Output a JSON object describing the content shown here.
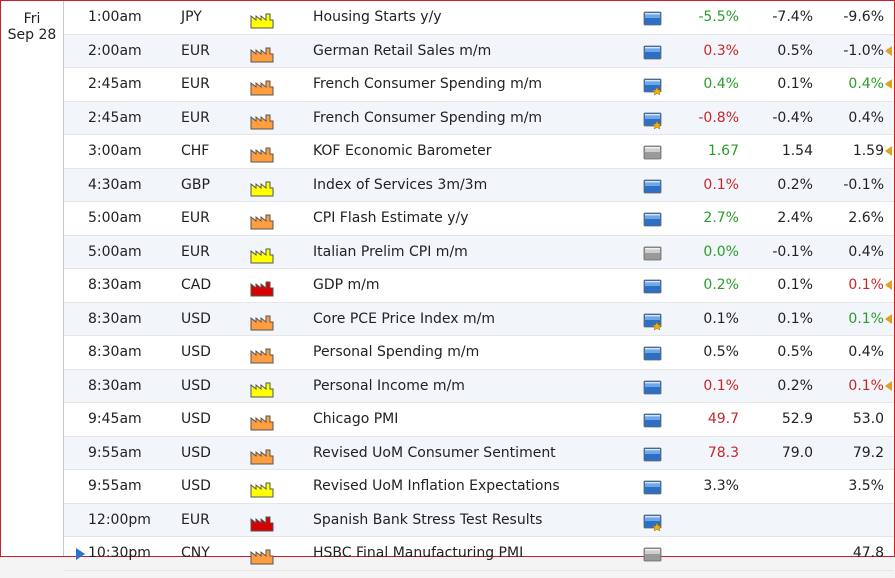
{
  "day": {
    "weekday": "Fri",
    "date": "Sep 28"
  },
  "colors": {
    "high": "#d60000",
    "medium": "#ff9d3f",
    "low": "#ffff00",
    "up": "#2a9d2a",
    "down": "#c62828"
  },
  "rows": [
    {
      "time": "1:00am",
      "currency": "JPY",
      "impact": "low",
      "event": "Housing Starts y/y",
      "detail": "blue",
      "actual": "-5.5%",
      "actual_color": "green",
      "forecast": "-7.4%",
      "previous": "-9.6%",
      "prev_color": "dark",
      "revised": false
    },
    {
      "time": "2:00am",
      "currency": "EUR",
      "impact": "medium",
      "event": "German Retail Sales m/m",
      "detail": "blue",
      "actual": "0.3%",
      "actual_color": "red",
      "forecast": "0.5%",
      "previous": "-1.0%",
      "prev_color": "dark",
      "revised": true
    },
    {
      "time": "2:45am",
      "currency": "EUR",
      "impact": "medium",
      "event": "French Consumer Spending m/m",
      "detail": "blue-star",
      "actual": "0.4%",
      "actual_color": "green",
      "forecast": "0.1%",
      "previous": "0.4%",
      "prev_color": "green",
      "revised": true
    },
    {
      "time": "2:45am",
      "currency": "EUR",
      "impact": "medium",
      "event": "French Consumer Spending m/m",
      "detail": "blue-star",
      "actual": "-0.8%",
      "actual_color": "red",
      "forecast": "-0.4%",
      "previous": "0.4%",
      "prev_color": "dark",
      "revised": false
    },
    {
      "time": "3:00am",
      "currency": "CHF",
      "impact": "medium",
      "event": "KOF Economic Barometer",
      "detail": "grey",
      "actual": "1.67",
      "actual_color": "green",
      "forecast": "1.54",
      "previous": "1.59",
      "prev_color": "dark",
      "revised": true
    },
    {
      "time": "4:30am",
      "currency": "GBP",
      "impact": "low",
      "event": "Index of Services 3m/3m",
      "detail": "blue",
      "actual": "0.1%",
      "actual_color": "red",
      "forecast": "0.2%",
      "previous": "-0.1%",
      "prev_color": "dark",
      "revised": false
    },
    {
      "time": "5:00am",
      "currency": "EUR",
      "impact": "medium",
      "event": "CPI Flash Estimate y/y",
      "detail": "blue",
      "actual": "2.7%",
      "actual_color": "green",
      "forecast": "2.4%",
      "previous": "2.6%",
      "prev_color": "dark",
      "revised": false
    },
    {
      "time": "5:00am",
      "currency": "EUR",
      "impact": "low",
      "event": "Italian Prelim CPI m/m",
      "detail": "grey",
      "actual": "0.0%",
      "actual_color": "green",
      "forecast": "-0.1%",
      "previous": "0.4%",
      "prev_color": "dark",
      "revised": false
    },
    {
      "time": "8:30am",
      "currency": "CAD",
      "impact": "high",
      "event": "GDP m/m",
      "detail": "blue",
      "actual": "0.2%",
      "actual_color": "green",
      "forecast": "0.1%",
      "previous": "0.1%",
      "prev_color": "red",
      "revised": true
    },
    {
      "time": "8:30am",
      "currency": "USD",
      "impact": "medium",
      "event": "Core PCE Price Index m/m",
      "detail": "blue-star",
      "actual": "0.1%",
      "actual_color": "dark",
      "forecast": "0.1%",
      "previous": "0.1%",
      "prev_color": "green",
      "revised": true
    },
    {
      "time": "8:30am",
      "currency": "USD",
      "impact": "medium",
      "event": "Personal Spending m/m",
      "detail": "blue",
      "actual": "0.5%",
      "actual_color": "dark",
      "forecast": "0.5%",
      "previous": "0.4%",
      "prev_color": "dark",
      "revised": false
    },
    {
      "time": "8:30am",
      "currency": "USD",
      "impact": "low",
      "event": "Personal Income m/m",
      "detail": "blue",
      "actual": "0.1%",
      "actual_color": "red",
      "forecast": "0.2%",
      "previous": "0.1%",
      "prev_color": "red",
      "revised": true
    },
    {
      "time": "9:45am",
      "currency": "USD",
      "impact": "medium",
      "event": "Chicago PMI",
      "detail": "blue",
      "actual": "49.7",
      "actual_color": "red",
      "forecast": "52.9",
      "previous": "53.0",
      "prev_color": "dark",
      "revised": false
    },
    {
      "time": "9:55am",
      "currency": "USD",
      "impact": "medium",
      "event": "Revised UoM Consumer Sentiment",
      "detail": "blue",
      "actual": "78.3",
      "actual_color": "red",
      "forecast": "79.0",
      "previous": "79.2",
      "prev_color": "dark",
      "revised": false
    },
    {
      "time": "9:55am",
      "currency": "USD",
      "impact": "low",
      "event": "Revised UoM Inflation Expectations",
      "detail": "blue",
      "actual": "3.3%",
      "actual_color": "dark",
      "forecast": "",
      "previous": "3.5%",
      "prev_color": "dark",
      "revised": false
    },
    {
      "time": "12:00pm",
      "currency": "EUR",
      "impact": "high",
      "event": "Spanish Bank Stress Test Results",
      "detail": "blue-star",
      "actual": "",
      "actual_color": "dark",
      "forecast": "",
      "previous": "",
      "prev_color": "dark",
      "revised": false
    },
    {
      "time": "10:30pm",
      "currency": "CNY",
      "impact": "medium",
      "event": "HSBC Final Manufacturing PMI",
      "detail": "grey",
      "actual": "",
      "actual_color": "dark",
      "forecast": "",
      "previous": "47.8",
      "prev_color": "dark",
      "revised": false,
      "next_marker": true
    }
  ]
}
